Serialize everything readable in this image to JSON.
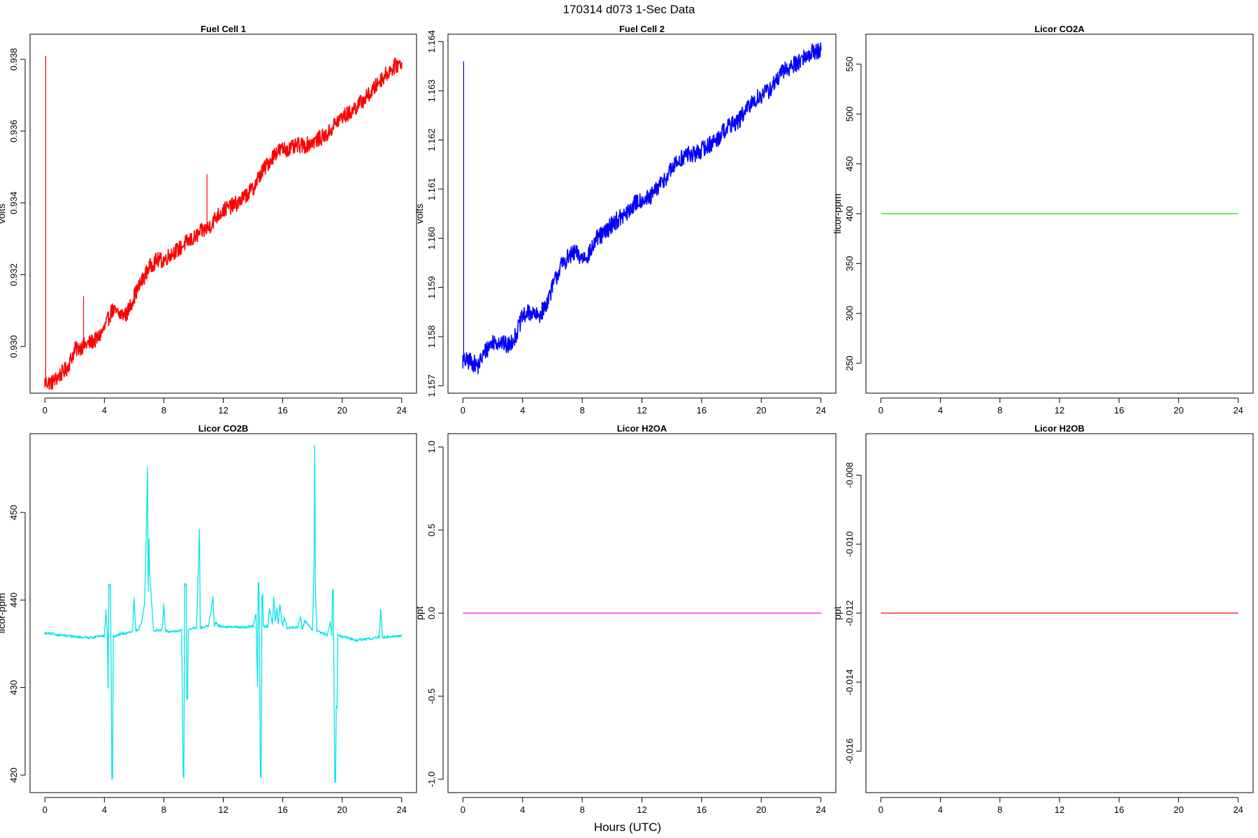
{
  "figure": {
    "title": "170314   d073   1-Sec Data",
    "xlabel": "Hours (UTC)"
  },
  "chart_data": [
    {
      "type": "line",
      "title": "Fuel Cell 1",
      "xlabel": "",
      "ylabel": "volts",
      "color": "#ff0000",
      "xlim": [
        -1,
        25
      ],
      "ylim": [
        0.9287,
        0.9387
      ],
      "xticks": [
        0,
        4,
        8,
        12,
        16,
        20,
        24
      ],
      "yticks": [
        0.93,
        0.932,
        0.934,
        0.936,
        0.938
      ],
      "ytick_labels": [
        "0.930",
        "0.932",
        "0.934",
        "0.936",
        "0.938"
      ],
      "noise": 0.00022,
      "x": [
        0,
        0.5,
        1,
        1.5,
        2,
        2.5,
        3,
        3.5,
        4,
        4.5,
        5,
        5.5,
        6,
        6.5,
        7,
        7.5,
        8,
        8.5,
        9,
        9.5,
        10,
        10.5,
        11,
        11.5,
        12,
        12.5,
        13,
        13.5,
        14,
        14.5,
        15,
        15.5,
        16,
        16.5,
        17,
        17.5,
        18,
        18.5,
        19,
        19.5,
        20,
        20.5,
        21,
        21.5,
        22,
        22.5,
        23,
        23.5,
        24
      ],
      "y": [
        0.929,
        0.929,
        0.9292,
        0.9294,
        0.9299,
        0.93,
        0.9301,
        0.9302,
        0.9305,
        0.931,
        0.9309,
        0.9309,
        0.9314,
        0.9318,
        0.9322,
        0.9324,
        0.9324,
        0.9326,
        0.9327,
        0.9329,
        0.933,
        0.9332,
        0.9333,
        0.9336,
        0.9338,
        0.9339,
        0.934,
        0.9342,
        0.9344,
        0.9348,
        0.9351,
        0.9354,
        0.9355,
        0.9355,
        0.9356,
        0.9356,
        0.9357,
        0.9358,
        0.9359,
        0.9362,
        0.9364,
        0.9365,
        0.9367,
        0.9369,
        0.9371,
        0.9374,
        0.9376,
        0.9378,
        0.9379
      ],
      "spikes": [
        [
          0.05,
          0.9381
        ],
        [
          2.6,
          0.9314
        ],
        [
          10.9,
          0.9348
        ]
      ]
    },
    {
      "type": "line",
      "title": "Fuel Cell 2",
      "xlabel": "",
      "ylabel": "volts",
      "color": "#0000ff",
      "xlim": [
        -1,
        25
      ],
      "ylim": [
        1.15685,
        1.16415
      ],
      "xticks": [
        0,
        4,
        8,
        12,
        16,
        20,
        24
      ],
      "yticks": [
        1.157,
        1.158,
        1.159,
        1.16,
        1.161,
        1.162,
        1.163,
        1.164
      ],
      "ytick_labels": [
        "1.157",
        "1.158",
        "1.159",
        "1.160",
        "1.161",
        "1.162",
        "1.163",
        "1.164"
      ],
      "noise": 0.00018,
      "x": [
        0,
        0.5,
        1,
        1.5,
        2,
        2.5,
        3,
        3.5,
        4,
        4.5,
        5,
        5.5,
        6,
        6.5,
        7,
        7.5,
        8,
        8.5,
        9,
        9.5,
        10,
        10.5,
        11,
        11.5,
        12,
        12.5,
        13,
        13.5,
        14,
        14.5,
        15,
        15.5,
        16,
        16.5,
        17,
        17.5,
        18,
        18.5,
        19,
        19.5,
        20,
        20.5,
        21,
        21.5,
        22,
        22.5,
        23,
        23.5,
        24
      ],
      "y": [
        1.1575,
        1.1575,
        1.1574,
        1.1577,
        1.1579,
        1.1579,
        1.1578,
        1.158,
        1.1584,
        1.1585,
        1.1584,
        1.1586,
        1.159,
        1.1594,
        1.1596,
        1.1597,
        1.1596,
        1.1597,
        1.16,
        1.1601,
        1.1603,
        1.1604,
        1.1605,
        1.1607,
        1.1608,
        1.1608,
        1.161,
        1.1612,
        1.1614,
        1.1616,
        1.1617,
        1.1617,
        1.1618,
        1.1619,
        1.162,
        1.1622,
        1.1623,
        1.1624,
        1.1626,
        1.1628,
        1.1629,
        1.163,
        1.1632,
        1.1634,
        1.1635,
        1.1636,
        1.1637,
        1.1638,
        1.1638
      ],
      "spikes": [
        [
          0.05,
          1.1636
        ]
      ]
    },
    {
      "type": "line",
      "title": "Licor CO2A",
      "xlabel": "",
      "ylabel": "licor-ppm",
      "color": "#00ee00",
      "xlim": [
        -1,
        25
      ],
      "ylim": [
        220,
        580
      ],
      "xticks": [
        0,
        4,
        8,
        12,
        16,
        20,
        24
      ],
      "yticks": [
        250,
        300,
        350,
        400,
        450,
        500,
        550
      ],
      "ytick_labels": [
        "250",
        "300",
        "350",
        "400",
        "450",
        "500",
        "550"
      ],
      "noise": 0,
      "x": [
        0,
        24
      ],
      "y": [
        400,
        400
      ],
      "spikes": []
    },
    {
      "type": "line",
      "title": "Licor CO2B",
      "xlabel": "",
      "ylabel": "licor-ppm",
      "color": "#00e5ee",
      "xlim": [
        -1,
        25
      ],
      "ylim": [
        418,
        459
      ],
      "xticks": [
        0,
        4,
        8,
        12,
        16,
        20,
        24
      ],
      "yticks": [
        420,
        430,
        440,
        450
      ],
      "ytick_labels": [
        "420",
        "430",
        "440",
        "450"
      ],
      "noise": 0.15,
      "x": [
        0,
        1,
        2,
        3,
        4,
        4.1,
        4.2,
        4.25,
        4.3,
        4.4,
        4.45,
        4.5,
        4.55,
        4.6,
        5,
        5.5,
        5.9,
        6,
        6.1,
        6.3,
        6.5,
        6.7,
        6.8,
        6.9,
        6.95,
        7.0,
        7.05,
        7.15,
        7.3,
        7.5,
        7.9,
        8,
        8.1,
        8.5,
        9.2,
        9.3,
        9.35,
        9.4,
        9.5,
        9.55,
        9.6,
        9.65,
        9.7,
        9.8,
        10.2,
        10.4,
        10.45,
        10.5,
        11,
        11.3,
        11.4,
        11.5,
        11.6,
        11.8,
        12.5,
        13.5,
        14.0,
        14.2,
        14.3,
        14.35,
        14.4,
        14.5,
        14.55,
        14.6,
        14.65,
        14.7,
        15,
        15.1,
        15.3,
        15.4,
        15.5,
        15.6,
        15.7,
        15.8,
        16,
        16.1,
        16.3,
        17,
        17.2,
        17.3,
        17.5,
        18,
        18.1,
        18.15,
        18.2,
        18.3,
        18.5,
        19,
        19.2,
        19.3,
        19.35,
        19.4,
        19.5,
        19.55,
        19.6,
        19.65,
        19.7,
        19.8,
        20,
        21,
        22,
        22.5,
        22.6,
        22.7,
        23,
        24
      ],
      "y": [
        436.2,
        436.0,
        435.8,
        435.7,
        435.9,
        438.7,
        436.0,
        430.0,
        441.7,
        441.7,
        434.0,
        419.6,
        419.6,
        435.8,
        436.1,
        436.2,
        436.4,
        440.2,
        436.5,
        436.6,
        437.5,
        439.5,
        446.0,
        455.0,
        441.0,
        447.0,
        443.0,
        440.5,
        436.5,
        436.5,
        436.6,
        439.5,
        436.5,
        436.4,
        436.5,
        419.7,
        419.7,
        441.8,
        441.8,
        428.8,
        428.8,
        436.6,
        436.7,
        436.7,
        436.8,
        448.0,
        436.9,
        436.8,
        437.0,
        440.3,
        437.0,
        437.5,
        437.2,
        437.0,
        436.9,
        436.9,
        437.0,
        438.5,
        430.2,
        441.9,
        441.9,
        419.8,
        419.8,
        440.5,
        440.5,
        437.0,
        437.0,
        439.0,
        437.2,
        440.3,
        437.5,
        439.0,
        437.2,
        439.5,
        437.0,
        438.2,
        436.8,
        436.9,
        438.0,
        436.7,
        437.6,
        436.6,
        443.5,
        457.8,
        441.0,
        436.5,
        436.3,
        436.0,
        437.5,
        435.9,
        441.2,
        441.2,
        419.2,
        419.2,
        427.8,
        427.8,
        436.0,
        435.9,
        435.8,
        435.4,
        435.6,
        435.8,
        439.0,
        435.7,
        435.8,
        435.9
      ],
      "spikes": []
    },
    {
      "type": "line",
      "title": "Licor H2OA",
      "xlabel": "",
      "ylabel": "ppt",
      "color": "#ff00ff",
      "xlim": [
        -1,
        25
      ],
      "ylim": [
        -1.08,
        1.08
      ],
      "xticks": [
        0,
        4,
        8,
        12,
        16,
        20,
        24
      ],
      "yticks": [
        -1.0,
        -0.5,
        0.0,
        0.5,
        1.0
      ],
      "ytick_labels": [
        "-1.0",
        "-0.5",
        "0.0",
        "0.5",
        "1.0"
      ],
      "noise": 0,
      "x": [
        0,
        24
      ],
      "y": [
        0,
        0
      ],
      "spikes": []
    },
    {
      "type": "line",
      "title": "Licor H2OB",
      "xlabel": "",
      "ylabel": "ppt",
      "color": "#ff0000",
      "xlim": [
        -1,
        25
      ],
      "ylim": [
        -0.0172,
        -0.0068
      ],
      "xticks": [
        0,
        4,
        8,
        12,
        16,
        20,
        24
      ],
      "yticks": [
        -0.016,
        -0.014,
        -0.012,
        -0.01,
        -0.008
      ],
      "ytick_labels": [
        "-0.016",
        "-0.014",
        "-0.012",
        "-0.010",
        "-0.008"
      ],
      "noise": 0,
      "x": [
        0,
        24
      ],
      "y": [
        -0.012,
        -0.012
      ],
      "spikes": []
    }
  ]
}
